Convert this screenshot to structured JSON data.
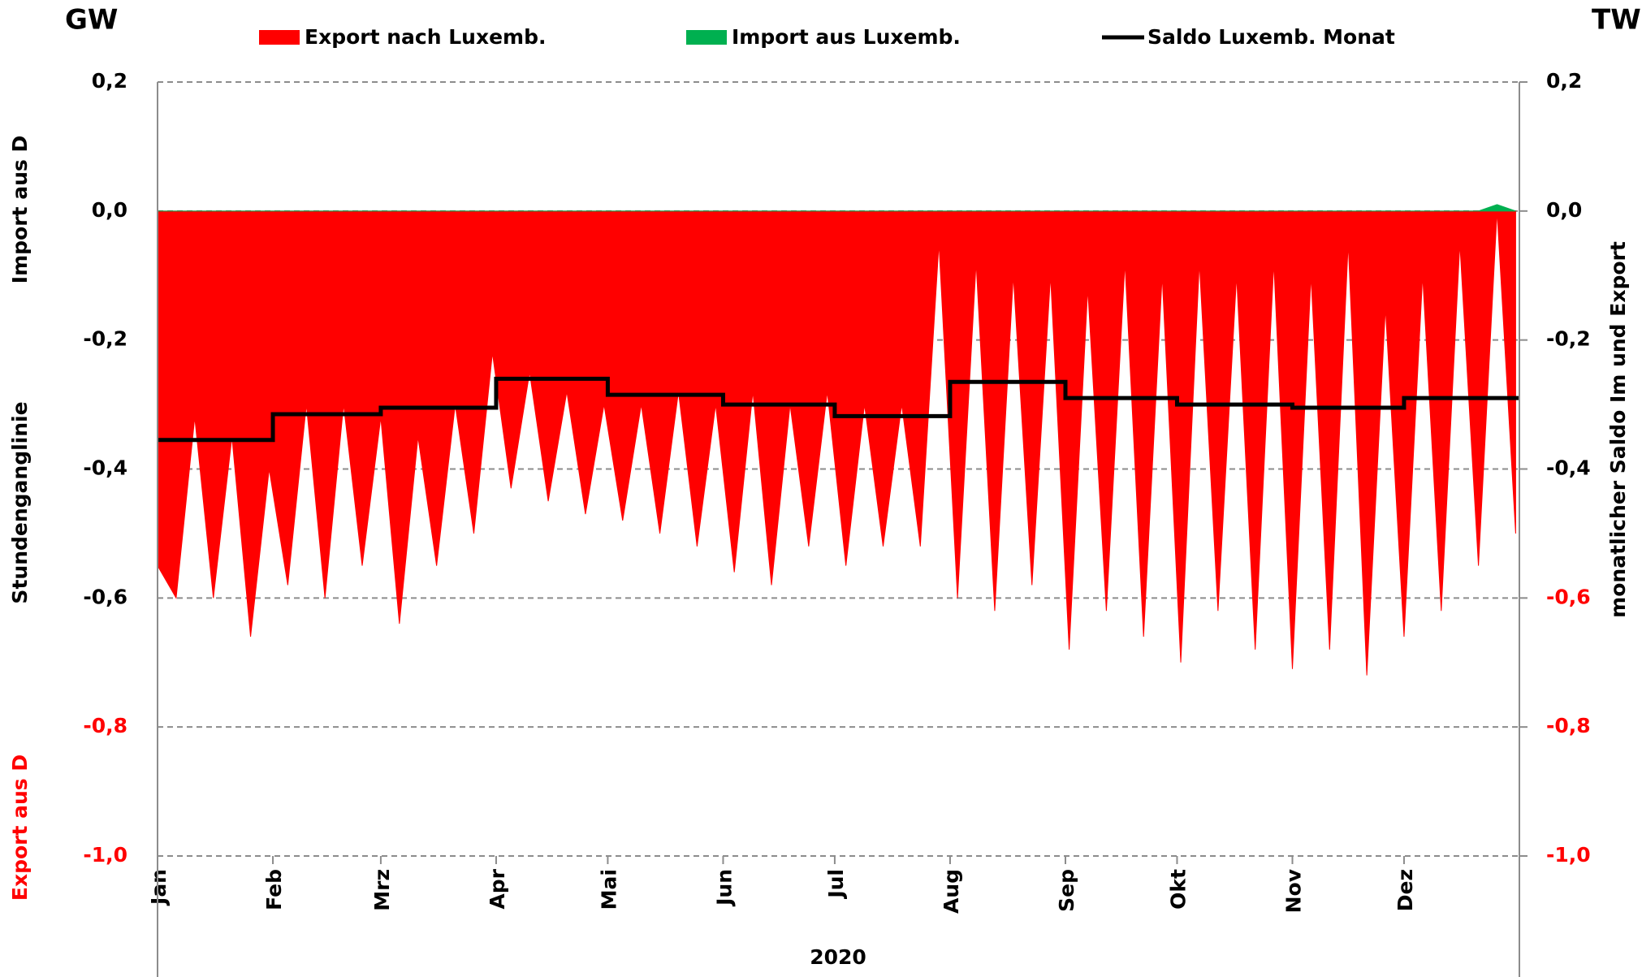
{
  "chart_data": {
    "type": "area",
    "left_unit": "GW",
    "right_unit": "TWh",
    "y_labels": [
      "Import aus D",
      "Stundenganglinie",
      "Export aus  D"
    ],
    "y_label_colors": [
      "#000000",
      "#000000",
      "#ff0000"
    ],
    "y2_label": "monatlicher Saldo Im und Export",
    "x_label": "2020",
    "xlim": [
      0,
      366
    ],
    "xticks": [
      {
        "value": 0,
        "label": "Jan"
      },
      {
        "value": 31,
        "label": "Feb"
      },
      {
        "value": 60,
        "label": "Mrz"
      },
      {
        "value": 91,
        "label": "Apr"
      },
      {
        "value": 121,
        "label": "Mai"
      },
      {
        "value": 152,
        "label": "Jun"
      },
      {
        "value": 182,
        "label": "Jul"
      },
      {
        "value": 213,
        "label": "Aug"
      },
      {
        "value": 244,
        "label": "Sep"
      },
      {
        "value": 274,
        "label": "Okt"
      },
      {
        "value": 305,
        "label": "Nov"
      },
      {
        "value": 335,
        "label": "Dez"
      }
    ],
    "ylim": [
      -1.0,
      0.2
    ],
    "yticks": [
      {
        "value": 0.2,
        "label": "0,2"
      },
      {
        "value": 0,
        "label": "0,0"
      },
      {
        "value": -0.2,
        "label": "-0,2"
      },
      {
        "value": -0.4,
        "label": "-0,4"
      },
      {
        "value": -0.6,
        "label": "-0,6"
      },
      {
        "value": -0.8,
        "label": "-0,8"
      },
      {
        "value": -1.0,
        "label": "-1,0"
      }
    ],
    "ytick_colors": [
      "#000000",
      "#000000",
      "#000000",
      "#000000",
      "#000000",
      "#ff0000",
      "#ff0000"
    ],
    "y2lim": [
      -1.0,
      0.2
    ],
    "y2ticks": [
      {
        "value": 0.2,
        "label": "0,2"
      },
      {
        "value": 0,
        "label": "0,0"
      },
      {
        "value": -0.2,
        "label": "-0,2"
      },
      {
        "value": -0.4,
        "label": "-0,4"
      },
      {
        "value": -0.6,
        "label": "-0,6"
      },
      {
        "value": -0.8,
        "label": "-0,8"
      },
      {
        "value": -1.0,
        "label": "-1,0"
      }
    ],
    "y2tick_colors": [
      "#000000",
      "#000000",
      "#000000",
      "#000000",
      "#ff0000",
      "#ff0000",
      "#ff0000"
    ],
    "grid": true,
    "x": [
      0,
      5,
      10,
      15,
      20,
      25,
      30,
      35,
      40,
      45,
      50,
      55,
      60,
      65,
      70,
      75,
      80,
      85,
      90,
      95,
      100,
      105,
      110,
      115,
      120,
      125,
      130,
      135,
      140,
      145,
      150,
      155,
      160,
      165,
      170,
      175,
      180,
      185,
      190,
      195,
      200,
      205,
      210,
      215,
      220,
      225,
      230,
      235,
      240,
      245,
      250,
      255,
      260,
      265,
      270,
      275,
      280,
      285,
      290,
      295,
      300,
      305,
      310,
      315,
      320,
      325,
      330,
      335,
      340,
      345,
      350,
      355,
      360,
      365
    ],
    "series": [
      {
        "name": "Export nach Luxemb.",
        "color": "#ff0000",
        "values": [
          -0.55,
          -0.6,
          -0.32,
          -0.6,
          -0.35,
          -0.66,
          -0.4,
          -0.58,
          -0.3,
          -0.6,
          -0.3,
          -0.55,
          -0.32,
          -0.64,
          -0.35,
          -0.55,
          -0.3,
          -0.5,
          -0.22,
          -0.43,
          -0.25,
          -0.45,
          -0.28,
          -0.47,
          -0.3,
          -0.48,
          -0.3,
          -0.5,
          -0.28,
          -0.52,
          -0.3,
          -0.56,
          -0.28,
          -0.58,
          -0.3,
          -0.52,
          -0.28,
          -0.55,
          -0.3,
          -0.52,
          -0.3,
          -0.52,
          -0.05,
          -0.6,
          -0.08,
          -0.62,
          -0.1,
          -0.58,
          -0.1,
          -0.68,
          -0.12,
          -0.62,
          -0.08,
          -0.66,
          -0.1,
          -0.7,
          -0.08,
          -0.62,
          -0.1,
          -0.68,
          -0.08,
          -0.71,
          -0.1,
          -0.68,
          -0.05,
          -0.72,
          -0.15,
          -0.66,
          -0.1,
          -0.62,
          -0.05,
          -0.55,
          0.0,
          -0.5
        ]
      },
      {
        "name": "Import aus Luxemb.",
        "color": "#00b050",
        "values": [
          0,
          0,
          0,
          0,
          0,
          0,
          0,
          0,
          0,
          0,
          0,
          0,
          0,
          0,
          0,
          0,
          0,
          0,
          0,
          0,
          0,
          0,
          0,
          0,
          0,
          0,
          0,
          0,
          0,
          0,
          0,
          0,
          0,
          0,
          0,
          0,
          0,
          0,
          0,
          0,
          0,
          0,
          0,
          0,
          0,
          0,
          0,
          0,
          0,
          0,
          0,
          0,
          0,
          0,
          0,
          0,
          0,
          0,
          0,
          0,
          0,
          0,
          0,
          0,
          0,
          0,
          0,
          0,
          0,
          0,
          0,
          0,
          0.01,
          0
        ]
      },
      {
        "name": "Saldo Luxemb. Monat",
        "color": "#000000",
        "type": "step",
        "axis": "y2",
        "x": [
          0,
          31,
          60,
          91,
          121,
          152,
          182,
          213,
          244,
          274,
          305,
          335
        ],
        "values": [
          -0.355,
          -0.315,
          -0.305,
          -0.26,
          -0.285,
          -0.3,
          -0.318,
          -0.265,
          -0.29,
          -0.3,
          -0.305,
          -0.29
        ]
      }
    ]
  }
}
